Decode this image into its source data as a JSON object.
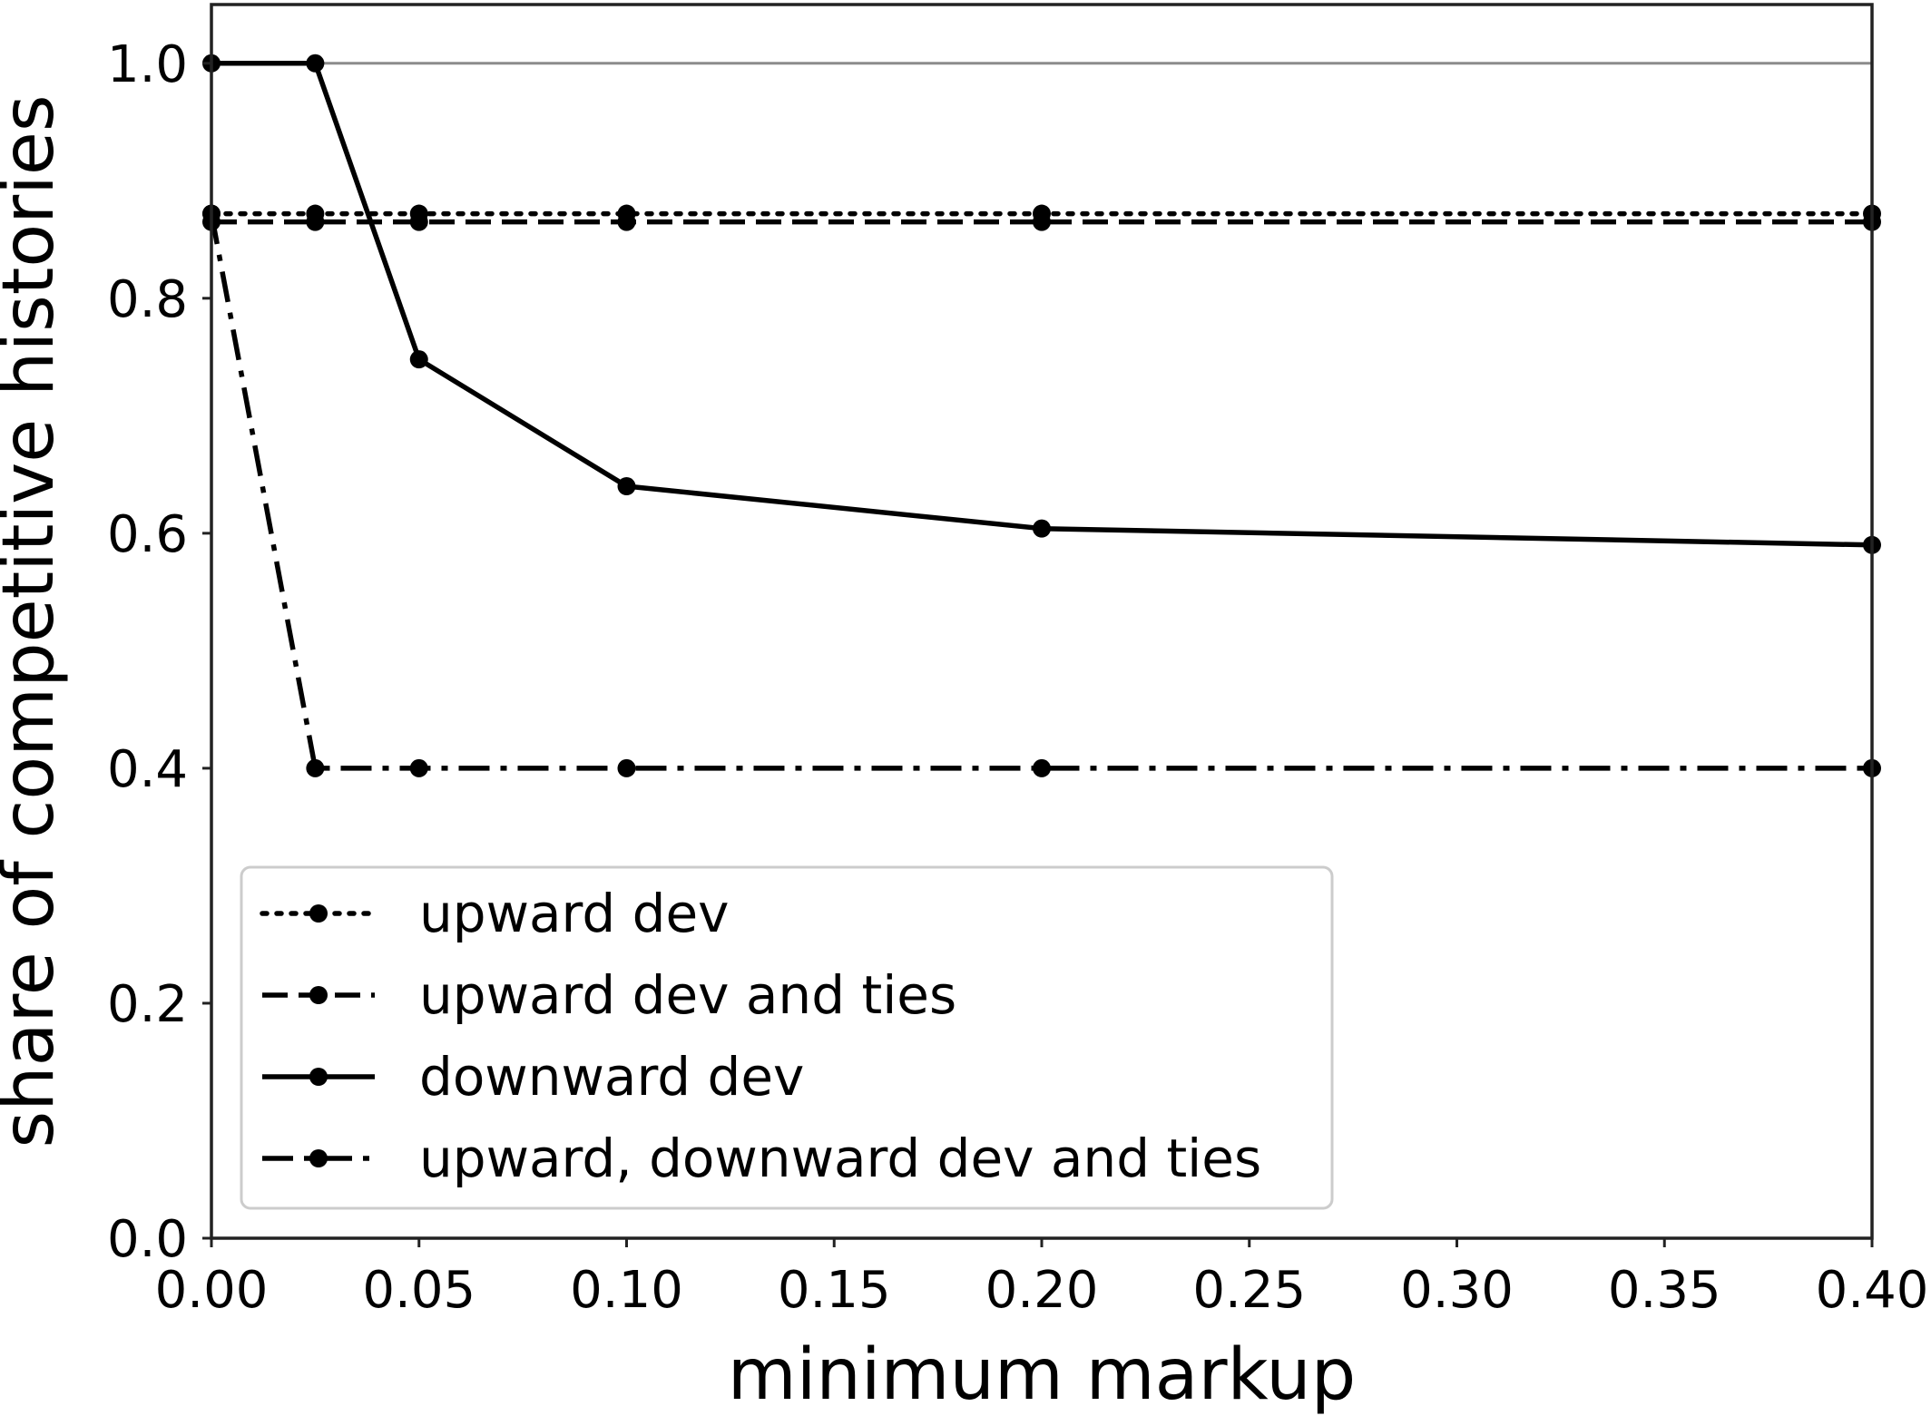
{
  "chart_data": {
    "type": "line",
    "title": "",
    "xlabel": "minimum markup",
    "ylabel": "share of competitive histories",
    "xlim": [
      0.0,
      0.4
    ],
    "ylim": [
      0.0,
      1.05
    ],
    "xticks": [
      "0.00",
      "0.05",
      "0.10",
      "0.15",
      "0.20",
      "0.25",
      "0.30",
      "0.35",
      "0.40"
    ],
    "yticks": [
      "0.0",
      "0.2",
      "0.4",
      "0.6",
      "0.8",
      "1.0"
    ],
    "grid": false,
    "legend_position": "lower-left",
    "reference_line": {
      "y": 1.0,
      "color": "#8c8c8c"
    },
    "x": [
      0.0,
      0.025,
      0.05,
      0.1,
      0.2,
      0.4
    ],
    "series": [
      {
        "name": "upward dev",
        "style": "dotted",
        "color": "#000000",
        "values": [
          0.872,
          0.872,
          0.872,
          0.872,
          0.872,
          0.872
        ]
      },
      {
        "name": "upward dev and ties",
        "style": "dashed",
        "color": "#000000",
        "values": [
          0.865,
          0.865,
          0.865,
          0.865,
          0.865,
          0.865
        ]
      },
      {
        "name": "downward dev",
        "style": "solid",
        "color": "#000000",
        "values": [
          1.0,
          1.0,
          0.748,
          0.64,
          0.604,
          0.59
        ]
      },
      {
        "name": "upward, downward dev and ties",
        "style": "dashdot",
        "color": "#000000",
        "values": [
          0.872,
          0.4,
          0.4,
          0.4,
          0.4,
          0.4
        ]
      }
    ]
  }
}
